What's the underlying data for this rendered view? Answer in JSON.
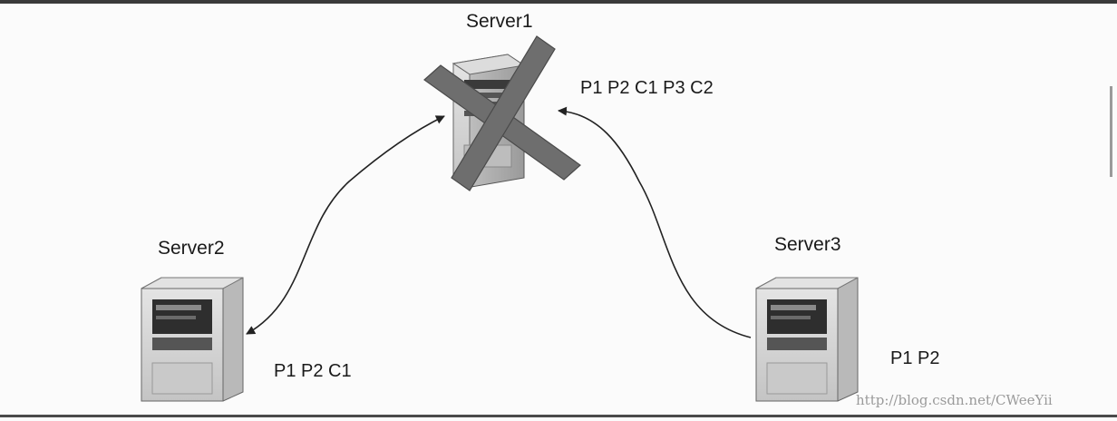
{
  "servers": {
    "server1": {
      "name": "Server1",
      "log": "P1 P2 C1 P3 C2",
      "failed": true
    },
    "server2": {
      "name": "Server2",
      "log": "P1 P2 C1"
    },
    "server3": {
      "name": "Server3",
      "log": "P1 P2"
    }
  },
  "watermark": "http://blog.csdn.net/CWeeYii",
  "colors": {
    "failure_cross": "#6e6e6e",
    "server_body": "#d2d2d2",
    "connector": "#222222"
  },
  "icons": [
    "server-icon",
    "failure-cross-icon"
  ]
}
